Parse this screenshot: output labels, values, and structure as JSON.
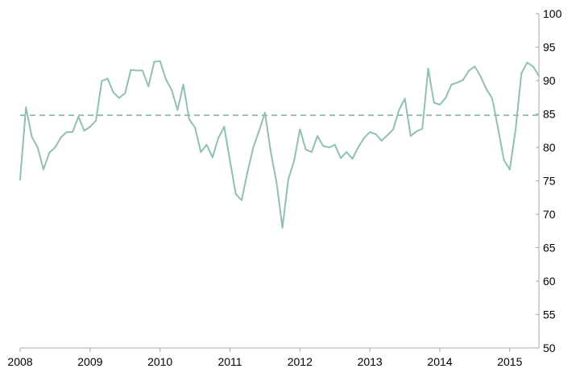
{
  "chart_data": {
    "type": "line",
    "title": "",
    "xlabel": "",
    "ylabel": "",
    "x_tick_labels": [
      "2008",
      "2009",
      "2010",
      "2011",
      "2012",
      "2013",
      "2014",
      "2015"
    ],
    "x_range": [
      "2008-01",
      "2015-06"
    ],
    "y_axis_position": "right",
    "ylim": [
      50,
      100
    ],
    "y_ticks": [
      50,
      55,
      60,
      65,
      70,
      75,
      80,
      85,
      90,
      95,
      100
    ],
    "grid": false,
    "legend": "none",
    "colors": {
      "line": "#8fc1ad",
      "reference": "#8fc1ad",
      "axis": "#a6a6a6"
    },
    "reference_line": {
      "style": "dashed",
      "value": 84.8
    },
    "series": [
      {
        "months": [
          "2008-01",
          "2008-02",
          "2008-03",
          "2008-04",
          "2008-05",
          "2008-06",
          "2008-07",
          "2008-08",
          "2008-09",
          "2008-10",
          "2008-11",
          "2008-12",
          "2009-01",
          "2009-02",
          "2009-03",
          "2009-04",
          "2009-05",
          "2009-06",
          "2009-07",
          "2009-08",
          "2009-09",
          "2009-10",
          "2009-11",
          "2009-12",
          "2010-01",
          "2010-02",
          "2010-03",
          "2010-04",
          "2010-05",
          "2010-06",
          "2010-07",
          "2010-08",
          "2010-09",
          "2010-10",
          "2010-11",
          "2010-12",
          "2011-01",
          "2011-02",
          "2011-03",
          "2011-04",
          "2011-05",
          "2011-06",
          "2011-07",
          "2011-08",
          "2011-09",
          "2011-10",
          "2011-11",
          "2011-12",
          "2012-01",
          "2012-02",
          "2012-03",
          "2012-04",
          "2012-05",
          "2012-06",
          "2012-07",
          "2012-08",
          "2012-09",
          "2012-10",
          "2012-11",
          "2012-12",
          "2013-01",
          "2013-02",
          "2013-03",
          "2013-04",
          "2013-05",
          "2013-06",
          "2013-07",
          "2013-08",
          "2013-09",
          "2013-10",
          "2013-11",
          "2013-12",
          "2014-01",
          "2014-02",
          "2014-03",
          "2014-04",
          "2014-05",
          "2014-06",
          "2014-07",
          "2014-08",
          "2014-09",
          "2014-10",
          "2014-11",
          "2014-12",
          "2015-01",
          "2015-02",
          "2015-03",
          "2015-04",
          "2015-05",
          "2015-06"
        ],
        "values": [
          75.2,
          86.0,
          81.6,
          80.0,
          76.7,
          79.2,
          80.0,
          81.5,
          82.3,
          82.3,
          84.6,
          82.5,
          83.1,
          84.0,
          89.9,
          90.3,
          88.2,
          87.4,
          88.1,
          91.6,
          91.5,
          91.5,
          89.1,
          92.8,
          92.9,
          90.2,
          88.6,
          85.6,
          89.4,
          84.2,
          83.0,
          79.3,
          80.4,
          78.5,
          81.4,
          83.1,
          78.0,
          73.0,
          72.1,
          76.3,
          80.0,
          82.5,
          85.2,
          79.3,
          74.7,
          68.0,
          75.2,
          78.0,
          82.7,
          79.7,
          79.3,
          81.7,
          80.2,
          80.0,
          80.4,
          78.4,
          79.3,
          78.3,
          80.0,
          81.4,
          82.3,
          82.0,
          81.0,
          81.8,
          82.7,
          85.6,
          87.3,
          81.7,
          82.4,
          82.8,
          91.8,
          86.7,
          86.4,
          87.4,
          89.4,
          89.7,
          90.1,
          91.5,
          92.1,
          90.6,
          88.7,
          87.3,
          82.8,
          78.1,
          76.7,
          82.7,
          91.1,
          92.7,
          92.1,
          90.7
        ]
      }
    ]
  }
}
